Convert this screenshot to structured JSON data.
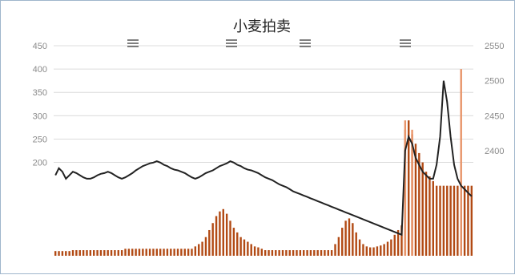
{
  "chart_data": {
    "type": "bar",
    "title": "小麦拍卖",
    "grid": true,
    "left_axis": {
      "ylim": [
        0,
        450
      ],
      "ticks": [
        "450",
        "400",
        "350",
        "300",
        "250",
        "200"
      ]
    },
    "right_axis": {
      "ylim": [
        2250,
        2550
      ],
      "ticks": [
        "2550",
        "2500",
        "2450",
        "2400"
      ]
    },
    "legend": {
      "placement": "top",
      "entries": [
        "",
        "",
        "",
        ""
      ]
    },
    "x_count": 120,
    "series": [
      {
        "kind": "bar",
        "axis": "left",
        "color": "#b24a14",
        "values": [
          10,
          10,
          10,
          10,
          10,
          12,
          12,
          12,
          12,
          12,
          12,
          12,
          12,
          12,
          12,
          12,
          12,
          12,
          12,
          12,
          15,
          15,
          15,
          15,
          15,
          15,
          15,
          15,
          15,
          15,
          15,
          15,
          15,
          15,
          15,
          15,
          15,
          15,
          15,
          15,
          20,
          25,
          30,
          40,
          55,
          70,
          85,
          95,
          100,
          90,
          75,
          60,
          50,
          40,
          35,
          30,
          25,
          20,
          18,
          15,
          12,
          12,
          12,
          12,
          12,
          12,
          12,
          12,
          12,
          12,
          12,
          12,
          12,
          12,
          12,
          12,
          12,
          12,
          12,
          12,
          25,
          40,
          60,
          75,
          80,
          70,
          50,
          35,
          25,
          20,
          18,
          18,
          20,
          22,
          25,
          30,
          35,
          45,
          55,
          65,
          270,
          290,
          260,
          240,
          220,
          200,
          180,
          170,
          160,
          150,
          150,
          150,
          150,
          150,
          150,
          150,
          150,
          150,
          150,
          150
        ]
      },
      {
        "kind": "bar",
        "axis": "left",
        "color": "#e8956a",
        "values": [
          0,
          0,
          0,
          0,
          0,
          0,
          0,
          0,
          0,
          0,
          0,
          0,
          0,
          0,
          0,
          0,
          0,
          0,
          0,
          0,
          0,
          0,
          0,
          0,
          0,
          0,
          0,
          0,
          0,
          0,
          0,
          0,
          0,
          0,
          0,
          0,
          0,
          0,
          0,
          0,
          0,
          0,
          0,
          0,
          0,
          0,
          0,
          0,
          0,
          0,
          0,
          0,
          0,
          0,
          0,
          0,
          0,
          0,
          0,
          0,
          0,
          0,
          0,
          0,
          0,
          0,
          0,
          0,
          0,
          0,
          0,
          0,
          0,
          0,
          0,
          0,
          0,
          0,
          0,
          0,
          0,
          0,
          0,
          0,
          0,
          0,
          0,
          0,
          0,
          0,
          0,
          0,
          0,
          0,
          0,
          0,
          0,
          0,
          0,
          0,
          290,
          0,
          270,
          0,
          0,
          0,
          0,
          0,
          0,
          0,
          0,
          0,
          0,
          0,
          0,
          0,
          400,
          0,
          0,
          0
        ]
      },
      {
        "kind": "line",
        "axis": "right",
        "color": "#222222",
        "values": [
          2365,
          2375,
          2370,
          2360,
          2365,
          2370,
          2368,
          2365,
          2362,
          2360,
          2360,
          2362,
          2365,
          2367,
          2368,
          2370,
          2368,
          2365,
          2362,
          2360,
          2362,
          2365,
          2368,
          2372,
          2375,
          2378,
          2380,
          2382,
          2383,
          2385,
          2383,
          2380,
          2378,
          2375,
          2373,
          2372,
          2370,
          2368,
          2365,
          2362,
          2360,
          2362,
          2365,
          2368,
          2370,
          2372,
          2375,
          2378,
          2380,
          2382,
          2385,
          2383,
          2380,
          2378,
          2375,
          2373,
          2372,
          2370,
          2368,
          2365,
          2362,
          2360,
          2358,
          2355,
          2352,
          2350,
          2348,
          2345,
          2342,
          2340,
          2338,
          2336,
          2334,
          2332,
          2330,
          2328,
          2326,
          2324,
          2322,
          2320,
          2318,
          2316,
          2314,
          2312,
          2310,
          2308,
          2306,
          2304,
          2302,
          2300,
          2298,
          2296,
          2294,
          2292,
          2290,
          2288,
          2286,
          2284,
          2282,
          2280,
          2400,
          2420,
          2410,
          2390,
          2380,
          2370,
          2365,
          2360,
          2360,
          2380,
          2420,
          2500,
          2470,
          2420,
          2380,
          2360,
          2350,
          2345,
          2340,
          2335
        ]
      }
    ]
  }
}
